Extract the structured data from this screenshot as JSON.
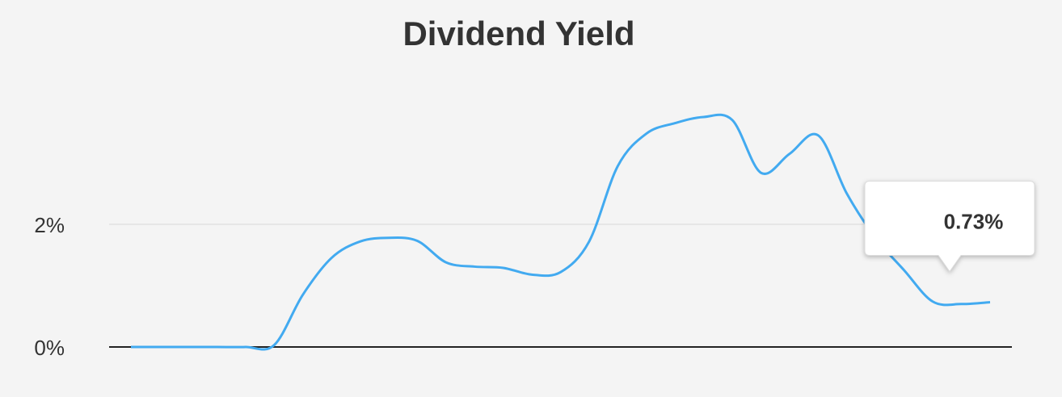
{
  "chart_data": {
    "type": "line",
    "title": "Dividend Yield",
    "categories": [
      null,
      null,
      null,
      null,
      null,
      null,
      null,
      null,
      null,
      null,
      null,
      null,
      null,
      null,
      null,
      null,
      null,
      null,
      null,
      null,
      null,
      null,
      null,
      null,
      null,
      null,
      null,
      null,
      null,
      null,
      null
    ],
    "series": [
      {
        "name": "Dividend Yield",
        "color": "#42aaf0",
        "values": [
          0,
          0,
          0,
          0,
          0,
          0.03,
          0.85,
          1.45,
          1.72,
          1.78,
          1.73,
          1.38,
          1.31,
          1.29,
          1.18,
          1.22,
          1.72,
          2.95,
          3.48,
          3.65,
          3.75,
          3.7,
          2.84,
          3.15,
          3.45,
          2.5,
          1.78,
          1.25,
          0.74,
          0.7,
          0.73
        ],
        "value_labels": [
          null,
          null,
          null,
          null,
          null,
          null,
          null,
          null,
          null,
          null,
          null,
          null,
          null,
          null,
          null,
          null,
          null,
          null,
          null,
          null,
          null,
          null,
          null,
          null,
          null,
          null,
          null,
          null,
          null,
          null,
          "0.73%"
        ]
      }
    ],
    "ylim": [
      0,
      4.3
    ],
    "yticks": [
      {
        "value": 0,
        "label": "0%"
      },
      {
        "value": 2,
        "label": "2%"
      }
    ],
    "grid": true
  }
}
